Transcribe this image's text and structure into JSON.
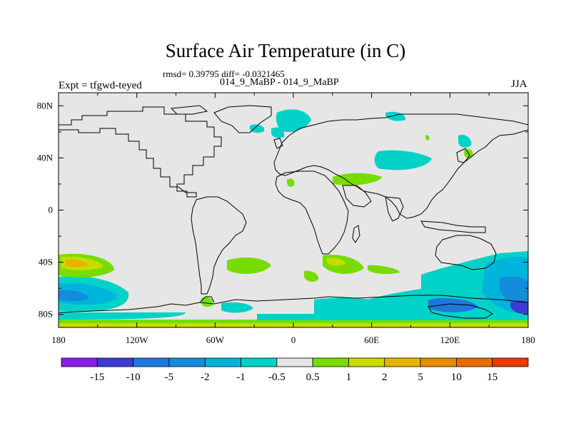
{
  "title": "Surface Air Temperature (in C)",
  "stats_line": "rmsd= 0.39795  diff= -0.0321465",
  "cases_line": "014_9_MaBP - 014_9_MaBP",
  "experiment_label": "Expt = tfgwd-teyed",
  "season_label": "JJA",
  "map": {
    "background_color": "#e6e6e6",
    "lon_range": [
      -180,
      180
    ],
    "lat_range": [
      -90,
      90
    ],
    "x_ticks": [
      {
        "value": -180,
        "label": "180"
      },
      {
        "value": -120,
        "label": "120W"
      },
      {
        "value": -60,
        "label": "60W"
      },
      {
        "value": 0,
        "label": "0"
      },
      {
        "value": 60,
        "label": "60E"
      },
      {
        "value": 120,
        "label": "120E"
      },
      {
        "value": 180,
        "label": "180"
      }
    ],
    "y_ticks": [
      {
        "value": 80,
        "label": "80N"
      },
      {
        "value": 40,
        "label": "40N"
      },
      {
        "value": 0,
        "label": "0"
      },
      {
        "value": -40,
        "label": "40S"
      },
      {
        "value": -80,
        "label": "80S"
      }
    ]
  },
  "colorbar": {
    "colors": [
      "#8c1ee6",
      "#3c3cd2",
      "#1e78dc",
      "#148cdc",
      "#00b4dc",
      "#00d2c8",
      "#e6e6e6",
      "#78dc00",
      "#c8dc00",
      "#e6b400",
      "#e68c00",
      "#e66e00",
      "#e63c00"
    ],
    "labels": [
      "-15",
      "-10",
      "-5",
      "-2",
      "-1",
      "-0.5",
      "0.5",
      "1",
      "2",
      "5",
      "10",
      "15"
    ]
  },
  "field_colors": {
    "cyan": "#00d2c8",
    "light_blue": "#00b4dc",
    "blue": "#148cdc",
    "dark_blue": "#1e78dc",
    "deep_blue": "#3c3cd2",
    "green": "#78dc00",
    "yellow_green": "#c8dc00",
    "orange": "#e6b400"
  }
}
